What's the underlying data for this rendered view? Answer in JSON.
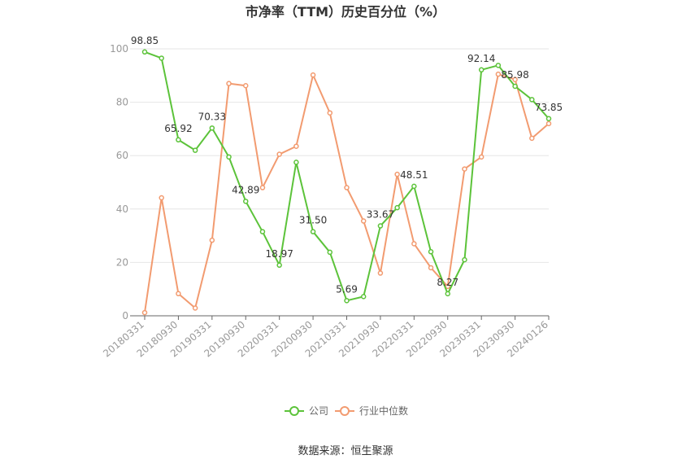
{
  "chart_data": {
    "type": "line",
    "title": "市净率（TTM）历史百分位（%）",
    "source": "数据来源：恒生聚源",
    "ylim": [
      0,
      100
    ],
    "yticks": [
      0,
      20,
      40,
      60,
      80,
      100
    ],
    "grid": true,
    "legend_position": "bottom-center",
    "xtick_labels": [
      "20180331",
      "20180930",
      "20190331",
      "20190930",
      "20200331",
      "20200930",
      "20210331",
      "20210930",
      "20220331",
      "20220930",
      "20230331",
      "20230930",
      "20240126"
    ],
    "series": [
      {
        "name": "公司",
        "color": "#5cc33a",
        "values": [
          98.85,
          96.5,
          65.92,
          62.0,
          70.33,
          59.5,
          42.89,
          31.5,
          18.97,
          57.5,
          31.5,
          23.8,
          5.69,
          7.2,
          33.67,
          40.5,
          48.51,
          24.0,
          8.27,
          21.0,
          92.14,
          93.8,
          85.98,
          81.0,
          73.85
        ],
        "labels": {
          "0": "98.85",
          "2": "65.92",
          "4": "70.33",
          "6": "42.89",
          "8": "18.97",
          "10": "31.50",
          "12": "5.69",
          "14": "33.67",
          "16": "48.51",
          "18": "8.27",
          "20": "92.14",
          "22": "85.98",
          "24": "73.85"
        }
      },
      {
        "name": "行业中位数",
        "color": "#f29b70",
        "values": [
          1.2,
          44.2,
          8.3,
          2.9,
          28.3,
          87.0,
          86.2,
          48.0,
          60.5,
          63.5,
          90.2,
          76.0,
          48.0,
          35.5,
          16.0,
          53.0,
          27.0,
          18.0,
          11.0,
          55.0,
          59.5,
          90.5,
          88.5,
          66.5,
          72.0
        ],
        "labels": {}
      }
    ]
  }
}
